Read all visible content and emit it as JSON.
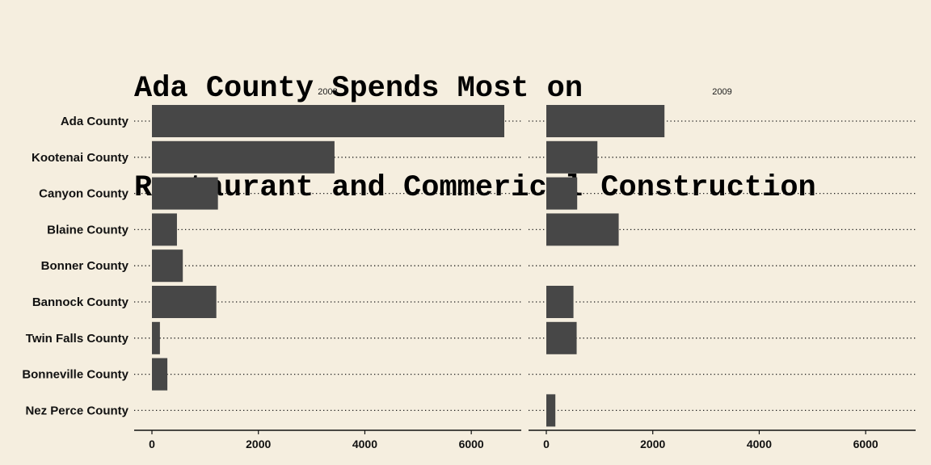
{
  "title_lines": [
    "Ada County Spends Most on",
    "Restaurant and Commerical Construction"
  ],
  "colors": {
    "background": "#f5eedf",
    "bar": "#474747",
    "gridline": "#1a1a1a"
  },
  "chart_data": {
    "type": "bar",
    "orientation": "horizontal",
    "title": "Ada County Spends Most on Restaurant and Commerical Construction",
    "categories": [
      "Ada County",
      "Kootenai County",
      "Canyon County",
      "Blaine County",
      "Bonner County",
      "Bannock County",
      "Twin Falls County",
      "Bonneville County",
      "Nez Perce County"
    ],
    "panels": [
      {
        "name": "2008",
        "values": [
          6620,
          3430,
          1240,
          470,
          580,
          1210,
          150,
          290,
          null
        ]
      },
      {
        "name": "2009",
        "values": [
          2220,
          960,
          580,
          1360,
          null,
          510,
          570,
          null,
          170
        ]
      }
    ],
    "xlim": [
      0,
      7000
    ],
    "xticks": [
      0,
      2000,
      4000,
      6000
    ],
    "xlabel": "",
    "ylabel": "",
    "grid": "dotted horizontal lines at each category",
    "legend": "none"
  }
}
